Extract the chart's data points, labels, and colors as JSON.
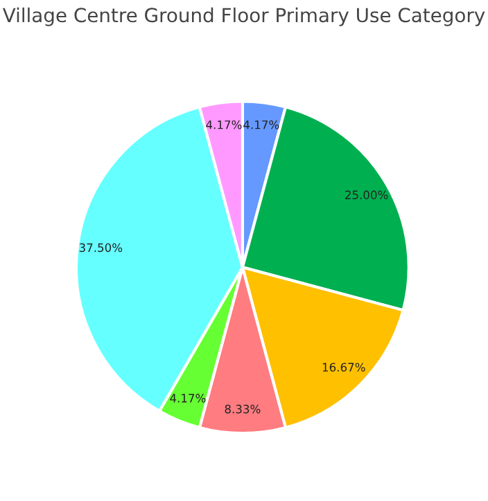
{
  "chart_data": {
    "type": "pie",
    "title": "Village Centre Ground Floor Primary Use Category",
    "categories": [
      null,
      null,
      null,
      null,
      null,
      null,
      null
    ],
    "values": [
      4.17,
      25.0,
      16.67,
      8.33,
      4.17,
      37.5,
      4.17
    ],
    "value_labels": [
      "4.17%",
      "25.00%",
      "16.67%",
      "8.33%",
      "4.17%",
      "37.50%",
      "4.17%"
    ],
    "colors": [
      "#6699ff",
      "#00b050",
      "#ffc000",
      "#ff7c80",
      "#66ff33",
      "#66ffff",
      "#ff99ff"
    ],
    "legend": false
  }
}
